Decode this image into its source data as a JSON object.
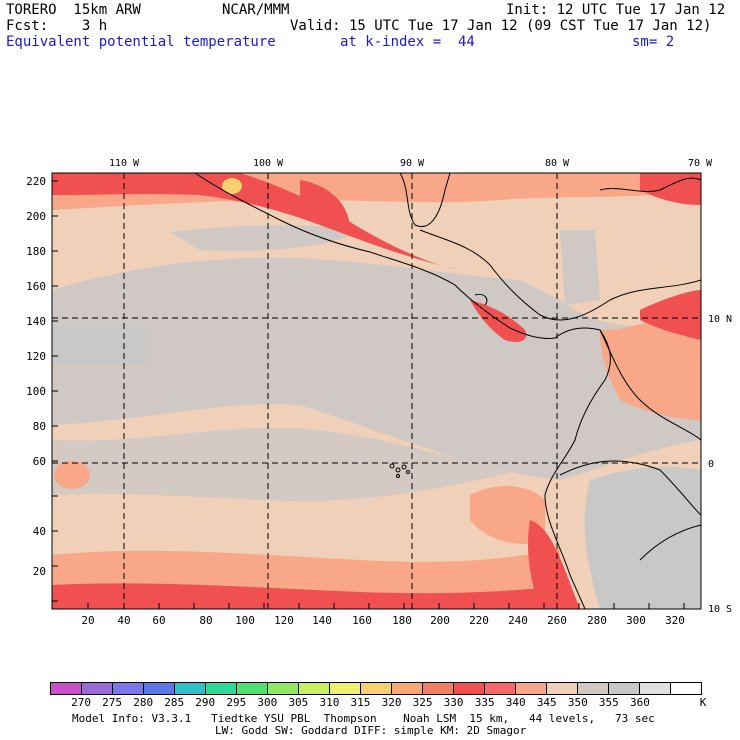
{
  "header": {
    "model": "TORERO  15km ARW",
    "org": "NCAR/MMM",
    "init": "Init: 12 UTC Tue 17 Jan 12",
    "fcst": "Fcst:    3 h",
    "valid": "Valid: 15 UTC Tue 17 Jan 12 (09 CST Tue 17 Jan 12)",
    "field": "Equivalent potential temperature",
    "level": "at k-index =  44",
    "smooth": "sm= 2"
  },
  "map": {
    "top_lon_labels": [
      "110 W",
      "100 W",
      "90 W",
      "80 W",
      "70 W"
    ],
    "right_lat_labels": [
      "10 N",
      "0",
      "10 S"
    ],
    "y_ticks": [
      "220",
      "200",
      "180",
      "160",
      "140",
      "120",
      "100",
      "80",
      "60",
      "40",
      "20"
    ],
    "x_ticks": [
      "20",
      "40",
      "60",
      "80",
      "100",
      "120",
      "140",
      "160",
      "180",
      "200",
      "220",
      "240",
      "260",
      "280",
      "300",
      "320"
    ]
  },
  "colorbar": {
    "labels": [
      "270",
      "275",
      "280",
      "285",
      "290",
      "295",
      "300",
      "305",
      "310",
      "315",
      "320",
      "325",
      "330",
      "335",
      "340",
      "345",
      "350",
      "355",
      "360"
    ],
    "unit": "K",
    "colors": [
      "#c850c8",
      "#9a6ad8",
      "#7a78e8",
      "#5a78e8",
      "#30c0c8",
      "#30d898",
      "#50e070",
      "#90e860",
      "#c8f060",
      "#f0f070",
      "#f8d070",
      "#f8a870",
      "#f08060",
      "#f05050",
      "#f86868",
      "#f8a888",
      "#f0d0b8",
      "#d0c8c4",
      "#c8c8c8",
      "#e0e0e0",
      "#ffffff"
    ]
  },
  "footer": {
    "line1": "Model Info: V3.3.1   Tiedtke YSU PBL  Thompson    Noah LSM  15 km,   44 levels,   73 sec",
    "line2": "LW: Godd SW: Goddard DIFF: simple KM: 2D Smagor"
  }
}
